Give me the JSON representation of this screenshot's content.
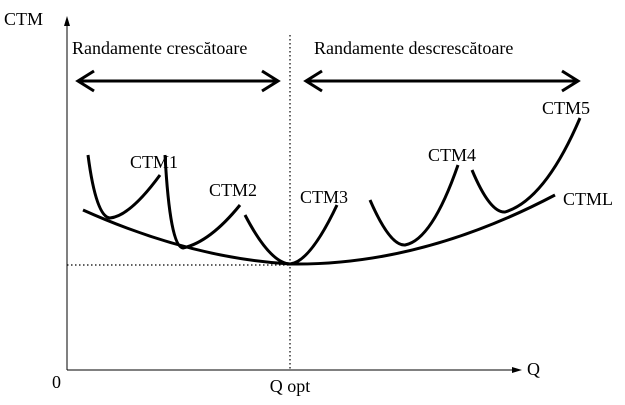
{
  "axes": {
    "y_label": "CTM",
    "x_label": "Q",
    "origin": "0",
    "x_marker": "Q opt"
  },
  "regions": [
    {
      "label": "Randamente crescătoare"
    },
    {
      "label": "Randamente descrescătoare"
    }
  ],
  "curves": [
    {
      "label": "CTM1"
    },
    {
      "label": "CTM2"
    },
    {
      "label": "CTM3"
    },
    {
      "label": "CTM4"
    },
    {
      "label": "CTM5"
    },
    {
      "label": "CTML"
    }
  ]
}
